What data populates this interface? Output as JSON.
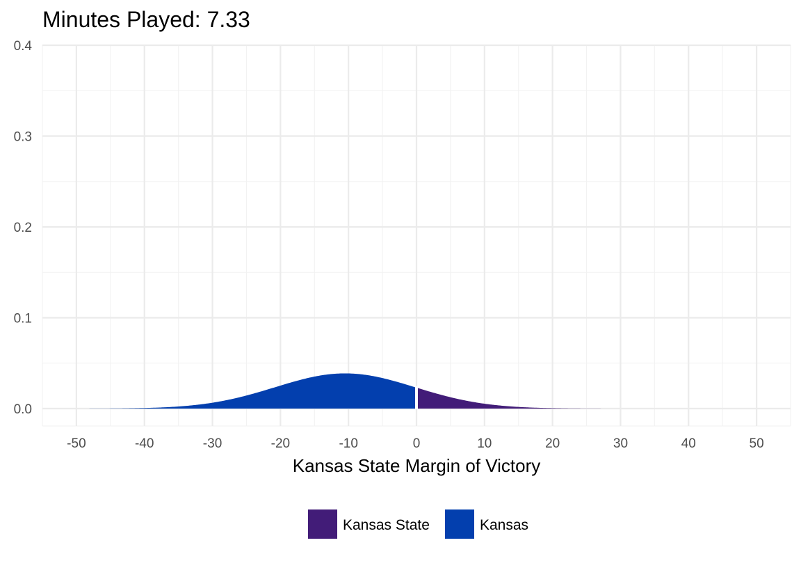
{
  "chart_data": {
    "type": "area",
    "title": "Minutes Played:  7.33",
    "xlabel": "Kansas State Margin of Victory",
    "ylabel": "",
    "xlim": [
      -55,
      55
    ],
    "ylim": [
      0,
      0.4
    ],
    "x_ticks": [
      -50,
      -40,
      -30,
      -20,
      -10,
      0,
      10,
      20,
      30,
      40,
      50
    ],
    "y_ticks": [
      0.0,
      0.1,
      0.2,
      0.3,
      0.4
    ],
    "x_tick_labels": [
      "-50",
      "-40",
      "-30",
      "-20",
      "-10",
      "0",
      "10",
      "20",
      "30",
      "40",
      "50"
    ],
    "y_tick_labels": [
      "0.0",
      "0.1",
      "0.2",
      "0.3",
      "0.4"
    ],
    "grid": true,
    "legend_position": "bottom",
    "distribution": {
      "kind": "normal density",
      "mean": -10.5,
      "sd": 10.3,
      "split_at": 0
    },
    "series": [
      {
        "name": "Kansas State",
        "region": "x > 0",
        "color": "#421C78"
      },
      {
        "name": "Kansas",
        "region": "x < 0",
        "color": "#033FAE"
      }
    ]
  }
}
